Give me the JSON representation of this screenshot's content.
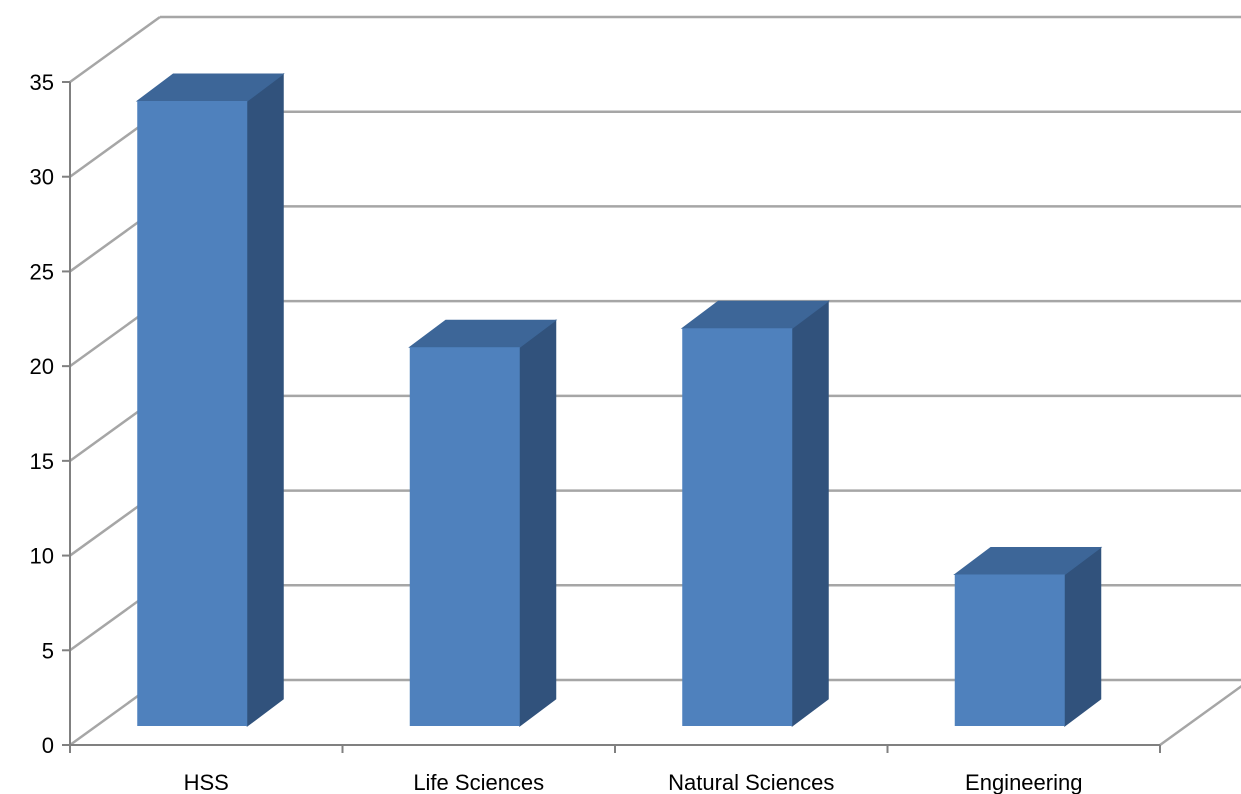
{
  "chart_data": {
    "type": "bar",
    "style": "3d-column",
    "categories": [
      "HSS",
      "Life Sciences",
      "Natural Sciences",
      "Engineering"
    ],
    "values": [
      33,
      20,
      21,
      8
    ],
    "ylim": [
      0,
      35
    ],
    "yticks": [
      0,
      5,
      10,
      15,
      20,
      25,
      30,
      35
    ],
    "grid": true,
    "legend": "none",
    "colors": {
      "bar_front": "#4F81BD",
      "bar_top": "#3D6698",
      "bar_side": "#31527C",
      "grid": "#A6A6A6",
      "axis": "#808080"
    }
  }
}
